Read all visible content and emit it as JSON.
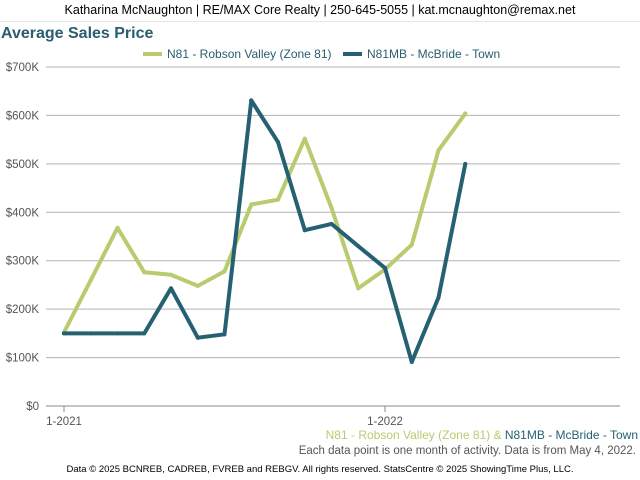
{
  "header": {
    "contact": "Katharina McNaughton | RE/MAX Core Realty | 250-645-5055 | kat.mcnaughton@remax.net"
  },
  "colors": {
    "series1": "#b8cb6e",
    "series2": "#256173",
    "grid": "#b3b3b3",
    "axis_text": "#555555",
    "title": "#2a5d6e"
  },
  "chart_data": {
    "type": "line",
    "title": "Average Sales Price",
    "xlabel": "",
    "ylabel": "",
    "x": [
      "2021-01",
      "2021-02",
      "2021-03",
      "2021-04",
      "2021-05",
      "2021-06",
      "2021-07",
      "2021-08",
      "2021-09",
      "2021-10",
      "2021-11",
      "2021-12",
      "2022-01",
      "2022-02",
      "2022-03",
      "2022-04",
      "2022-05"
    ],
    "x_tick_labels": [
      {
        "x": "2021-01",
        "label": "1-2021"
      },
      {
        "x": "2022-01",
        "label": "1-2022"
      }
    ],
    "ylim": [
      0,
      700000
    ],
    "y_ticks": [
      0,
      100000,
      200000,
      300000,
      400000,
      500000,
      600000,
      700000
    ],
    "y_tick_labels": [
      "$0",
      "$100K",
      "$200K",
      "$300K",
      "$400K",
      "$500K",
      "$600K",
      "$700K"
    ],
    "grid": true,
    "legend_position": "top",
    "series": [
      {
        "name": "N81 - Robson Valley (Zone 81)",
        "color": "#b8cb6e",
        "values": [
          152000,
          260000,
          368000,
          276000,
          271000,
          248000,
          278000,
          416000,
          426000,
          552000,
          409000,
          243000,
          282000,
          333000,
          528000,
          604000,
          null
        ]
      },
      {
        "name": "N81MB - McBride - Town",
        "color": "#256173",
        "values": [
          150000,
          150000,
          150000,
          150000,
          243000,
          141000,
          148000,
          631000,
          545000,
          363000,
          376000,
          330000,
          285000,
          91000,
          224000,
          500000,
          null
        ]
      }
    ]
  },
  "caption": {
    "series1_label": "N81 - Robson Valley (Zone 81)",
    "joiner": " & ",
    "series2_label": "N81MB - McBride - Town",
    "note": "Each data point is one month of activity. Data is from May 4, 2022."
  },
  "footer": {
    "text": "Data © 2025 BCNREB, CADREB, FVREB and REBGV. All rights reserved. StatsCentre © 2025 ShowingTime Plus, LLC."
  }
}
